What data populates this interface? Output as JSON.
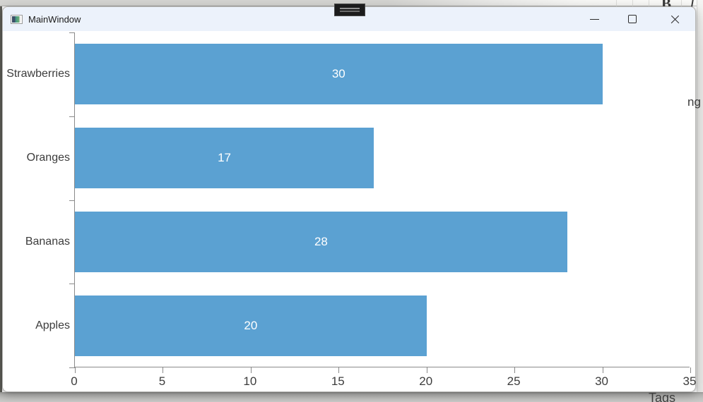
{
  "window": {
    "title": "MainWindow",
    "controls": [
      "minimize",
      "maximize",
      "close"
    ]
  },
  "background_fragments": {
    "bold_button": "B",
    "italic_button": "I",
    "right_text": "ng",
    "bottom_text": "Tags"
  },
  "chart_data": {
    "type": "bar",
    "orientation": "horizontal",
    "title": "",
    "xlabel": "",
    "ylabel": "",
    "categories": [
      "Strawberries",
      "Oranges",
      "Bananas",
      "Apples"
    ],
    "values": [
      30,
      17,
      28,
      20
    ],
    "x_ticks": [
      0,
      5,
      10,
      15,
      20,
      25,
      30,
      35
    ],
    "xlim": [
      0,
      35
    ],
    "grid": false,
    "legend": "none",
    "bar_color": "#5BA1D2",
    "value_label_color": "#FFFFFF",
    "axis_color": "#8A8A8A",
    "tick_label_color": "#3C3C3C"
  }
}
